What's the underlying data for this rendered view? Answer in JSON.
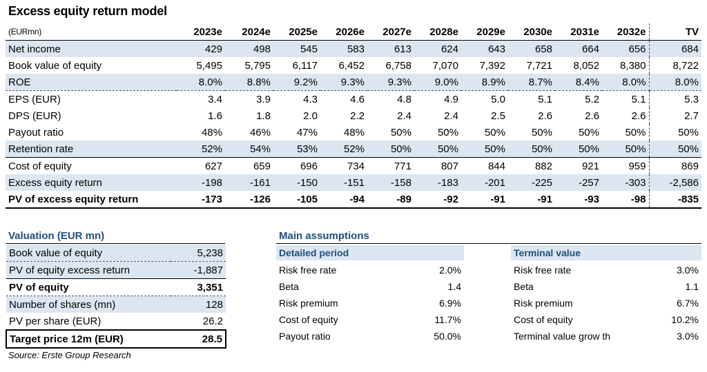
{
  "title": "Excess equity return model",
  "main_table": {
    "unit_label": "(EURmn)",
    "columns": [
      "2023e",
      "2024e",
      "2025e",
      "2026e",
      "2027e",
      "2028e",
      "2029e",
      "2030e",
      "2031e",
      "2032e",
      "TV"
    ],
    "rows": [
      {
        "label": "Net income",
        "values": [
          "429",
          "498",
          "545",
          "583",
          "613",
          "624",
          "643",
          "658",
          "664",
          "656",
          "684"
        ]
      },
      {
        "label": "Book value of equity",
        "values": [
          "5,495",
          "5,795",
          "6,117",
          "6,452",
          "6,758",
          "7,070",
          "7,392",
          "7,721",
          "8,052",
          "8,380",
          "8,722"
        ]
      },
      {
        "label": "ROE",
        "values": [
          "8.0%",
          "8.8%",
          "9.2%",
          "9.3%",
          "9.3%",
          "9.0%",
          "8.9%",
          "8.7%",
          "8.4%",
          "8.0%",
          "8.0%"
        ]
      },
      {
        "label": "EPS (EUR)",
        "values": [
          "3.4",
          "3.9",
          "4.3",
          "4.6",
          "4.8",
          "4.9",
          "5.0",
          "5.1",
          "5.2",
          "5.1",
          "5.3"
        ]
      },
      {
        "label": "DPS (EUR)",
        "values": [
          "1.6",
          "1.8",
          "2.0",
          "2.2",
          "2.4",
          "2.4",
          "2.5",
          "2.6",
          "2.6",
          "2.6",
          "2.7"
        ]
      },
      {
        "label": "Payout ratio",
        "values": [
          "48%",
          "46%",
          "47%",
          "48%",
          "50%",
          "50%",
          "50%",
          "50%",
          "50%",
          "50%",
          "50%"
        ]
      },
      {
        "label": "Retention rate",
        "values": [
          "52%",
          "54%",
          "53%",
          "52%",
          "50%",
          "50%",
          "50%",
          "50%",
          "50%",
          "50%",
          "50%"
        ]
      },
      {
        "label": "Cost of equity",
        "values": [
          "627",
          "659",
          "696",
          "734",
          "771",
          "807",
          "844",
          "882",
          "921",
          "959",
          "869"
        ]
      },
      {
        "label": "Excess equity return",
        "values": [
          "-198",
          "-161",
          "-150",
          "-151",
          "-158",
          "-183",
          "-201",
          "-225",
          "-257",
          "-303",
          "-2,586"
        ]
      },
      {
        "label": "PV of excess equity return",
        "values": [
          "-173",
          "-126",
          "-105",
          "-94",
          "-89",
          "-92",
          "-91",
          "-91",
          "-93",
          "-98",
          "-835"
        ]
      }
    ]
  },
  "valuation": {
    "title": "Valuation (EUR mn)",
    "rows": [
      {
        "label": "Book value of equity",
        "value": "5,238"
      },
      {
        "label": "PV of equity excess return",
        "value": "-1,887"
      },
      {
        "label": "PV of equity",
        "value": "3,351"
      },
      {
        "label": "Number of shares (mn)",
        "value": "128"
      },
      {
        "label": "PV per share (EUR)",
        "value": "26.2"
      },
      {
        "label": "Target price 12m (EUR)",
        "value": "28.5"
      }
    ]
  },
  "source": "Source: Erste Group Research",
  "assumptions": {
    "title": "Main assumptions",
    "detailed": {
      "title": "Detailed period",
      "rows": [
        {
          "label": "Risk free rate",
          "value": "2.0%"
        },
        {
          "label": "Beta",
          "value": "1.4"
        },
        {
          "label": "Risk premium",
          "value": "6.9%"
        },
        {
          "label": "Cost of equity",
          "value": "11.7%"
        },
        {
          "label": "Payout ratio",
          "value": "50.0%"
        }
      ]
    },
    "terminal": {
      "title": "Terminal value",
      "rows": [
        {
          "label": "Risk free rate",
          "value": "3.0%"
        },
        {
          "label": "Beta",
          "value": "1.1"
        },
        {
          "label": "Risk premium",
          "value": "6.7%"
        },
        {
          "label": "Cost of equity",
          "value": "10.2%"
        },
        {
          "label": "Terminal value grow th",
          "value": "3.0%"
        }
      ]
    }
  },
  "colors": {
    "accent": "#1f4e79",
    "shade": "#dce6f1"
  }
}
